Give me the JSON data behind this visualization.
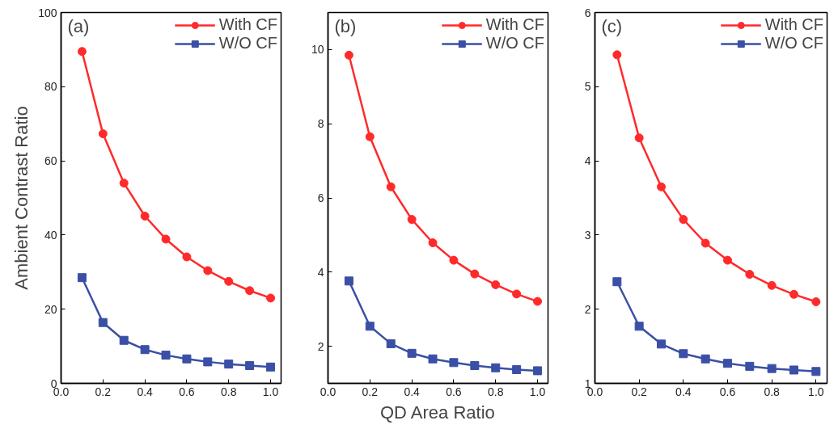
{
  "chart_data": [
    {
      "type": "line",
      "ylabel": "Ambient Contrast Ratio",
      "annotations": [
        "(a)"
      ],
      "x": [
        0.1,
        0.2,
        0.3,
        0.4,
        0.5,
        0.6,
        0.7,
        0.8,
        0.9,
        1.0
      ],
      "xlim": [
        0.0,
        1.05
      ],
      "xticks": [
        {
          "value": 0.0,
          "label": "0.0"
        },
        {
          "value": 0.2,
          "label": "0.2"
        },
        {
          "value": 0.4,
          "label": "0.4"
        },
        {
          "value": 0.6,
          "label": "0.6"
        },
        {
          "value": 0.8,
          "label": "0.8"
        },
        {
          "value": 1.0,
          "label": "1.0"
        }
      ],
      "ylim": [
        0,
        100
      ],
      "yticks": [
        0,
        20,
        40,
        60,
        80,
        100
      ],
      "grid": false,
      "legend": "top right",
      "series": [
        {
          "name": "With CF",
          "color": "#ff2a2a",
          "marker": "circle",
          "values": [
            89.5,
            67.3,
            54,
            45.1,
            38.9,
            34.1,
            30.4,
            27.5,
            25,
            23
          ]
        },
        {
          "name": "W/O CF",
          "color": "#3a4fa5",
          "marker": "square",
          "values": [
            28.5,
            16.4,
            11.6,
            9.1,
            7.6,
            6.6,
            5.8,
            5.2,
            4.8,
            4.4
          ]
        }
      ]
    },
    {
      "type": "line",
      "xlabel": "QD Area Ratio",
      "annotations": [
        "(b)"
      ],
      "x": [
        0.1,
        0.2,
        0.3,
        0.4,
        0.5,
        0.6,
        0.7,
        0.8,
        0.9,
        1.0
      ],
      "xlim": [
        0.0,
        1.05
      ],
      "xticks": [
        {
          "value": 0.0,
          "label": "0.0"
        },
        {
          "value": 0.2,
          "label": "0.2"
        },
        {
          "value": 0.4,
          "label": "0.4"
        },
        {
          "value": 0.6,
          "label": "0.6"
        },
        {
          "value": 0.8,
          "label": "0.8"
        },
        {
          "value": 1.0,
          "label": "1.0"
        }
      ],
      "ylim": [
        1,
        11
      ],
      "yticks": [
        2,
        4,
        6,
        8,
        10
      ],
      "grid": false,
      "legend": "top right",
      "series": [
        {
          "name": "With CF",
          "color": "#ff2a2a",
          "marker": "circle",
          "values": [
            9.85,
            7.65,
            6.3,
            5.42,
            4.79,
            4.32,
            3.95,
            3.66,
            3.41,
            3.21
          ]
        },
        {
          "name": "W/O CF",
          "color": "#3a4fa5",
          "marker": "square",
          "values": [
            3.76,
            2.54,
            2.07,
            1.81,
            1.66,
            1.56,
            1.48,
            1.42,
            1.37,
            1.34
          ]
        }
      ]
    },
    {
      "type": "line",
      "annotations": [
        "(c)"
      ],
      "x": [
        0.1,
        0.2,
        0.3,
        0.4,
        0.5,
        0.6,
        0.7,
        0.8,
        0.9,
        1.0
      ],
      "xlim": [
        0.0,
        1.05
      ],
      "xticks": [
        {
          "value": 0.0,
          "label": "0.0"
        },
        {
          "value": 0.2,
          "label": "0.2"
        },
        {
          "value": 0.4,
          "label": "0.4"
        },
        {
          "value": 0.6,
          "label": "0.6"
        },
        {
          "value": 0.8,
          "label": "0.8"
        },
        {
          "value": 1.0,
          "label": "1.0"
        }
      ],
      "ylim": [
        1,
        6
      ],
      "yticks": [
        1,
        2,
        3,
        4,
        5,
        6
      ],
      "grid": false,
      "legend": "top right",
      "series": [
        {
          "name": "With CF",
          "color": "#ff2a2a",
          "marker": "circle",
          "values": [
            5.43,
            4.31,
            3.65,
            3.21,
            2.89,
            2.66,
            2.47,
            2.32,
            2.2,
            2.1
          ]
        },
        {
          "name": "W/O CF",
          "color": "#3a4fa5",
          "marker": "square",
          "values": [
            2.37,
            1.77,
            1.53,
            1.4,
            1.33,
            1.27,
            1.23,
            1.2,
            1.18,
            1.16
          ]
        }
      ]
    }
  ]
}
